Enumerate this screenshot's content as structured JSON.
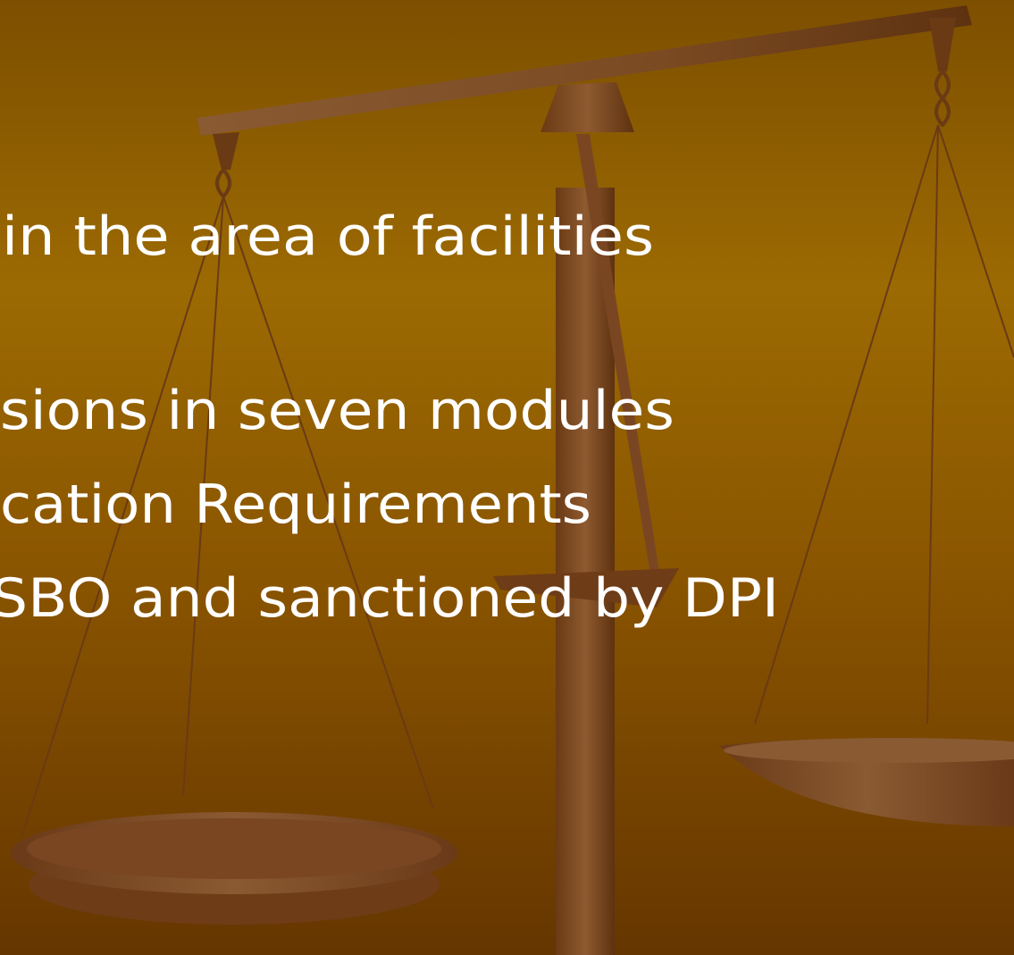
{
  "slide": {
    "lines": [
      "in the area of facilities",
      "sions in seven modules",
      "cation Requirements",
      "SBO and sanctioned by DPI"
    ]
  }
}
